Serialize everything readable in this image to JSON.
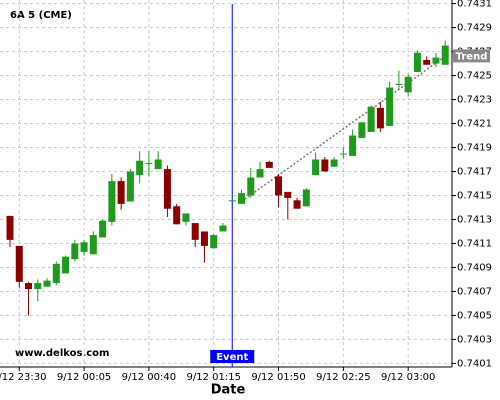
{
  "chart_data": {
    "type": "candlestick",
    "title": "6A 5 (CME)",
    "x_label": "Date",
    "watermark": "www.delkos.com",
    "categories": [
      null,
      "9/12 23:30",
      null,
      null,
      null,
      null,
      null,
      null,
      "9/12 00:05",
      null,
      null,
      null,
      null,
      null,
      null,
      "9/12 00:40",
      null,
      null,
      null,
      null,
      null,
      null,
      "9/12 01:15",
      null,
      null,
      null,
      null,
      null,
      null,
      "9/12 01:50",
      null,
      null,
      null,
      null,
      null,
      null,
      "9/12 02:25",
      null,
      null,
      null,
      null,
      null,
      null,
      "9/12 03:00",
      null,
      null,
      null,
      null
    ],
    "open": [
      0.74133,
      0.74108,
      0.74077,
      0.74072,
      0.74074,
      0.74077,
      0.74085,
      0.74097,
      0.74103,
      0.74101,
      0.74115,
      0.74128,
      0.74162,
      0.74145,
      0.74167,
      0.74177,
      0.74172,
      0.74172,
      0.74141,
      0.74128,
      0.74127,
      0.7412,
      0.74106,
      0.7412,
      0.74146,
      0.74143,
      0.7415,
      0.74165,
      0.74178,
      0.74166,
      0.74153,
      0.74146,
      0.74141,
      0.74167,
      0.7418,
      0.74174,
      0.74185,
      0.74183,
      0.74198,
      0.74203,
      0.74223,
      0.74208,
      0.74243,
      0.74236,
      0.74253,
      0.74263,
      0.7426,
      0.74259
    ],
    "high": [
      0.74133,
      0.74108,
      0.74078,
      0.7408,
      0.74081,
      0.74095,
      0.741,
      0.74113,
      0.74113,
      0.7412,
      0.7413,
      0.74168,
      0.74165,
      0.74172,
      0.74187,
      0.74187,
      0.74187,
      0.74175,
      0.74143,
      0.74135,
      0.74127,
      0.7412,
      0.74118,
      0.74127,
      0.74146,
      0.74155,
      0.74173,
      0.74178,
      0.74179,
      0.74168,
      0.74153,
      0.74148,
      0.74156,
      0.74186,
      0.74182,
      0.74182,
      0.7419,
      0.74205,
      0.74211,
      0.74225,
      0.74228,
      0.74245,
      0.74254,
      0.74251,
      0.74271,
      0.74266,
      0.74269,
      0.74279
    ],
    "low": [
      0.74107,
      0.74073,
      0.7405,
      0.74062,
      0.74074,
      0.74075,
      0.74085,
      0.74095,
      0.741,
      0.74101,
      0.74115,
      0.74125,
      0.74138,
      0.74145,
      0.7416,
      0.74166,
      0.74172,
      0.74132,
      0.74126,
      0.74125,
      0.74107,
      0.74094,
      0.74106,
      0.7412,
      0.74146,
      0.74143,
      0.74148,
      0.74165,
      0.74173,
      0.7414,
      0.7413,
      0.74139,
      0.74141,
      0.74167,
      0.7417,
      0.74174,
      0.74181,
      0.74183,
      0.74198,
      0.74203,
      0.74203,
      0.74208,
      0.74238,
      0.74233,
      0.74253,
      0.74259,
      0.74257,
      0.74259
    ],
    "close": [
      0.74113,
      0.74078,
      0.74072,
      0.74077,
      0.74079,
      0.74093,
      0.74099,
      0.7411,
      0.74111,
      0.74117,
      0.74129,
      0.74162,
      0.74143,
      0.7417,
      0.74179,
      0.74177,
      0.7418,
      0.74139,
      0.74126,
      0.74135,
      0.74113,
      0.74108,
      0.74117,
      0.74125,
      0.74146,
      0.74152,
      0.74165,
      0.74172,
      0.74173,
      0.7415,
      0.74148,
      0.74139,
      0.74155,
      0.7418,
      0.7417,
      0.7418,
      0.74185,
      0.742,
      0.74211,
      0.74224,
      0.74206,
      0.7424,
      0.74243,
      0.74249,
      0.74269,
      0.74259,
      0.74265,
      0.74275
    ],
    "up_color": "#1f9a1f",
    "down_color": "#8b0000",
    "ylim": [
      0.74007,
      0.74313
    ],
    "yticks": [
      0.7401,
      0.7403,
      0.7405,
      0.7407,
      0.7409,
      0.7411,
      0.7413,
      0.7415,
      0.7417,
      0.7419,
      0.7421,
      0.7423,
      0.7425,
      0.7427,
      0.7429,
      0.7431
    ],
    "grid": true,
    "event": {
      "label": "Event",
      "index": 24,
      "color": "#0000ff"
    },
    "trend": {
      "label": "Trend",
      "start_index": 25,
      "start_value": 0.74145,
      "end_index": 47,
      "end_value": 0.74266
    }
  }
}
